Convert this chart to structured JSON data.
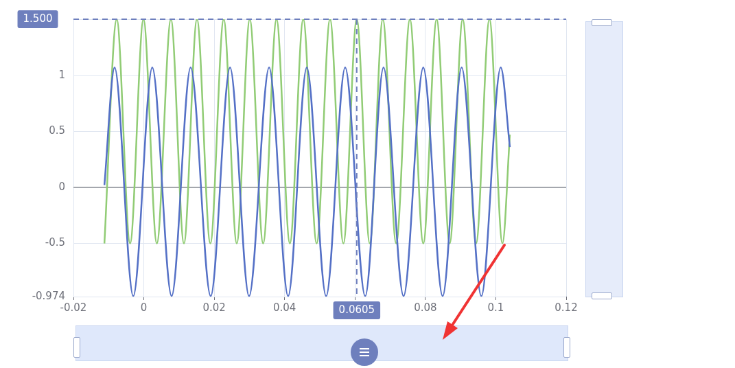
{
  "chart_data": {
    "type": "line",
    "marker": "none",
    "grid": true,
    "legend": false,
    "xlim": [
      -0.02,
      0.12
    ],
    "xticks": [
      -0.02,
      0,
      0.02,
      0.04,
      {
        "value": 0.06,
        "label": null
      },
      0.08,
      0.1,
      0.12
    ],
    "ylim": [
      -0.974,
      1.5
    ],
    "yticks": [
      -0.974,
      -0.5,
      0,
      0.5,
      1,
      {
        "value": 1.5,
        "label": null
      }
    ],
    "ref_lines": [
      {
        "axis": "y",
        "value": 1.5,
        "label": "1.500",
        "color": "#6e7fbd",
        "line_style": "dashed"
      },
      {
        "axis": "x",
        "value": 0.0605,
        "label": "0.0605",
        "color": "#6e7fbd",
        "line_style": "dashed"
      }
    ],
    "series": [
      {
        "color": "#5470c6",
        "x": [
          -0.0112,
          -0.0083,
          -0.003,
          0.0024,
          0.0079,
          0.0133,
          0.019,
          0.0245,
          0.0299,
          0.0356,
          0.041,
          0.0463,
          0.0518,
          0.0572,
          0.0629,
          0.0681,
          0.0738,
          0.0794,
          0.0849,
          0.0903,
          0.0959,
          0.1014,
          0.104
        ],
        "values": [
          0.02,
          1.07,
          -0.97,
          1.07,
          -0.97,
          1.07,
          -0.97,
          1.07,
          -0.97,
          1.07,
          -0.97,
          1.07,
          -0.97,
          1.07,
          -0.97,
          1.07,
          -0.97,
          1.07,
          -0.97,
          1.07,
          -0.97,
          1.07,
          0.36
        ]
      },
      {
        "color": "#91cc75",
        "x": [
          -0.0112,
          -0.0077,
          -0.0039,
          -0.0001,
          0.0037,
          0.0077,
          0.0114,
          0.0151,
          0.0189,
          0.0227,
          0.0264,
          0.0301,
          0.0339,
          0.0377,
          0.0415,
          0.0453,
          0.0491,
          0.0529,
          0.0567,
          0.0605,
          0.0642,
          0.0679,
          0.0717,
          0.0756,
          0.0794,
          0.0832,
          0.0869,
          0.0906,
          0.0944,
          0.0982,
          0.1019,
          0.104
        ],
        "values": [
          -0.5,
          1.5,
          -0.5,
          1.5,
          -0.5,
          1.5,
          -0.5,
          1.5,
          -0.5,
          1.5,
          -0.5,
          1.5,
          -0.5,
          1.5,
          -0.5,
          1.5,
          -0.5,
          1.5,
          -0.5,
          1.5,
          -0.5,
          1.5,
          -0.5,
          1.5,
          -0.5,
          1.5,
          -0.5,
          1.5,
          -0.5,
          1.5,
          -0.5,
          0.47
        ]
      }
    ]
  }
}
